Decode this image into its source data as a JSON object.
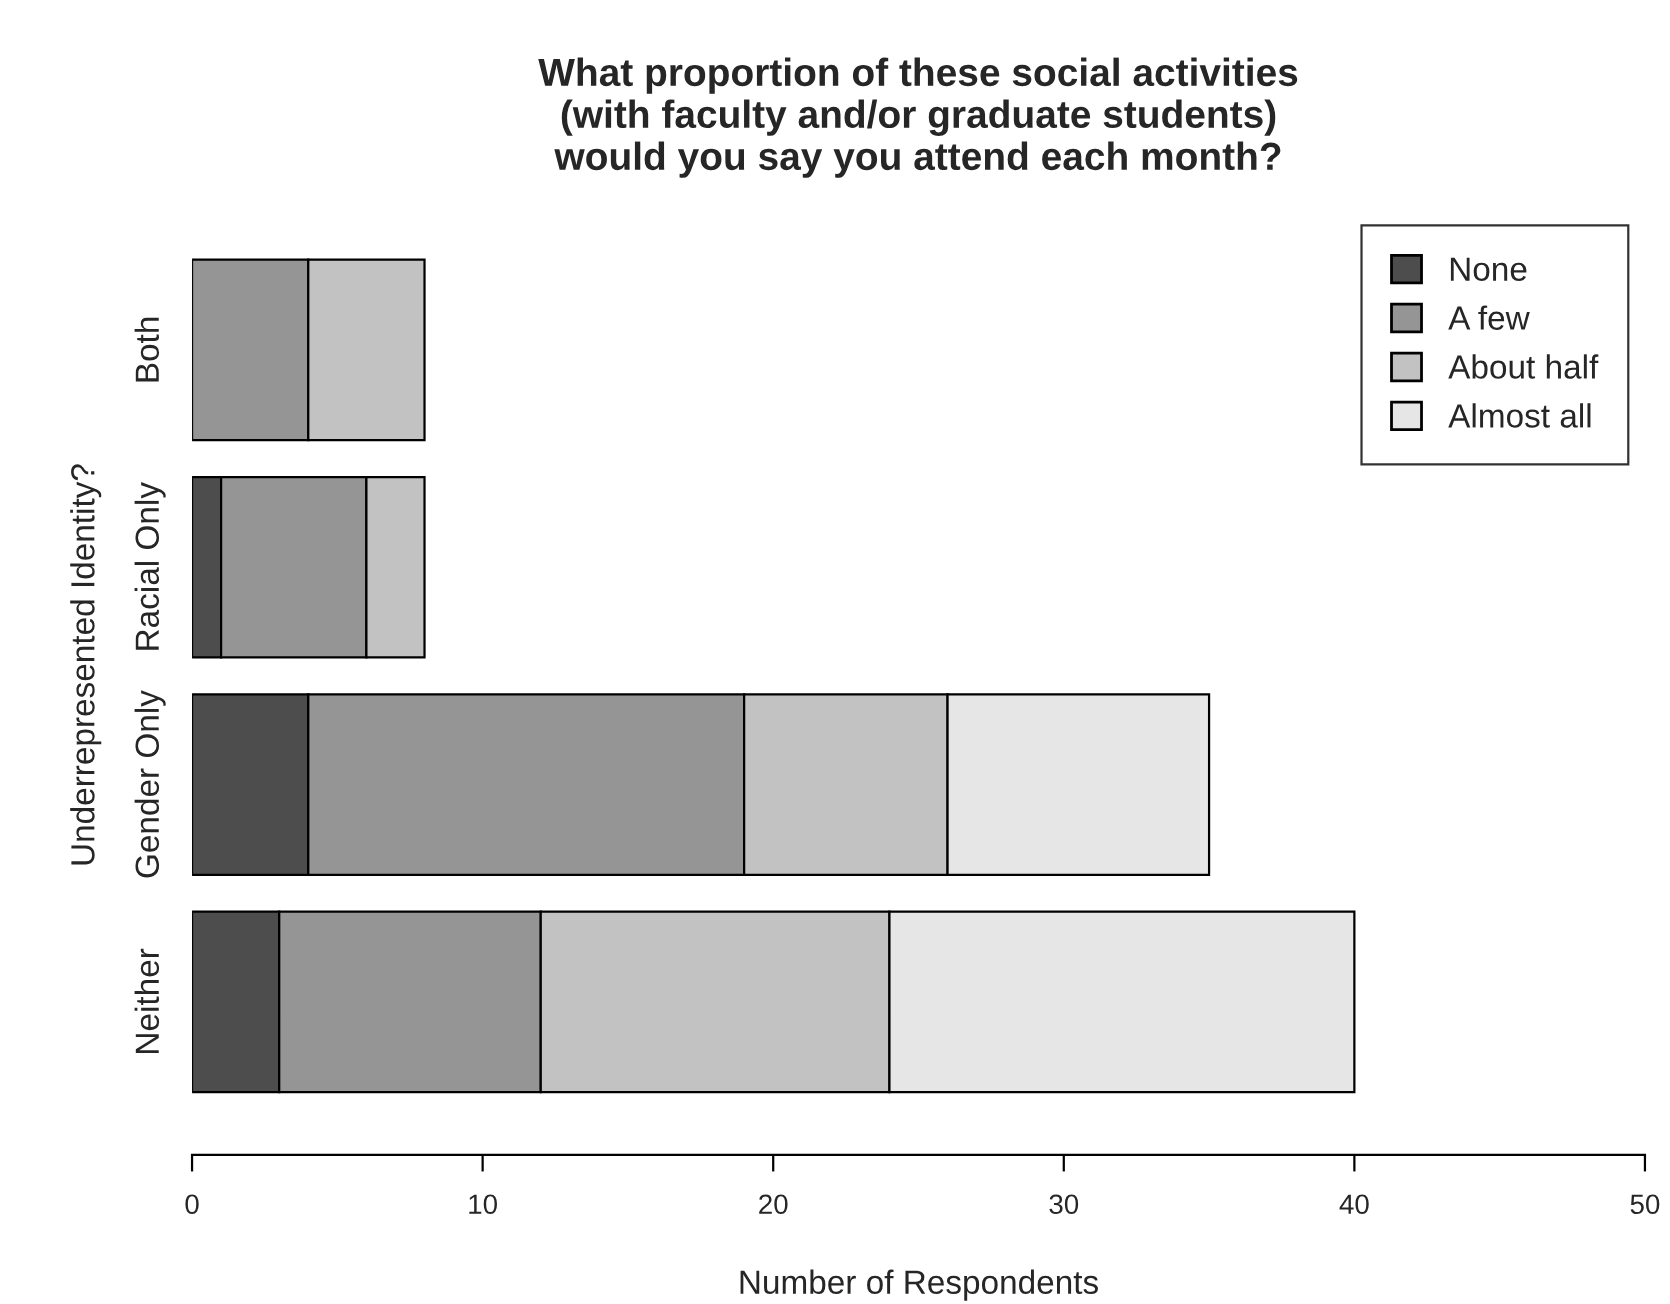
{
  "chart_data": {
    "type": "bar",
    "orientation": "horizontal",
    "stacked": true,
    "title": "What proportion of these social activities\n(with faculty and/or graduate students)\nwould you say you attend each month?",
    "xlabel": "Number of Respondents",
    "ylabel": "Underrepresented Identity?",
    "categories": [
      "Both",
      "Racial Only",
      "Gender Only",
      "Neither"
    ],
    "series": [
      {
        "name": "None",
        "color": "#4d4d4d",
        "values": [
          null,
          1,
          4,
          3
        ]
      },
      {
        "name": "A few",
        "color": "#959595",
        "values": [
          4,
          5,
          15,
          9
        ]
      },
      {
        "name": "About half",
        "color": "#c2c2c2",
        "values": [
          4,
          2,
          7,
          12
        ]
      },
      {
        "name": "Almost all",
        "color": "#e6e6e6",
        "values": [
          null,
          null,
          9,
          16
        ]
      }
    ],
    "xlim": [
      0,
      50
    ],
    "xticks": [
      0,
      10,
      20,
      30,
      40,
      50
    ],
    "grid": false,
    "legend": "top right"
  }
}
